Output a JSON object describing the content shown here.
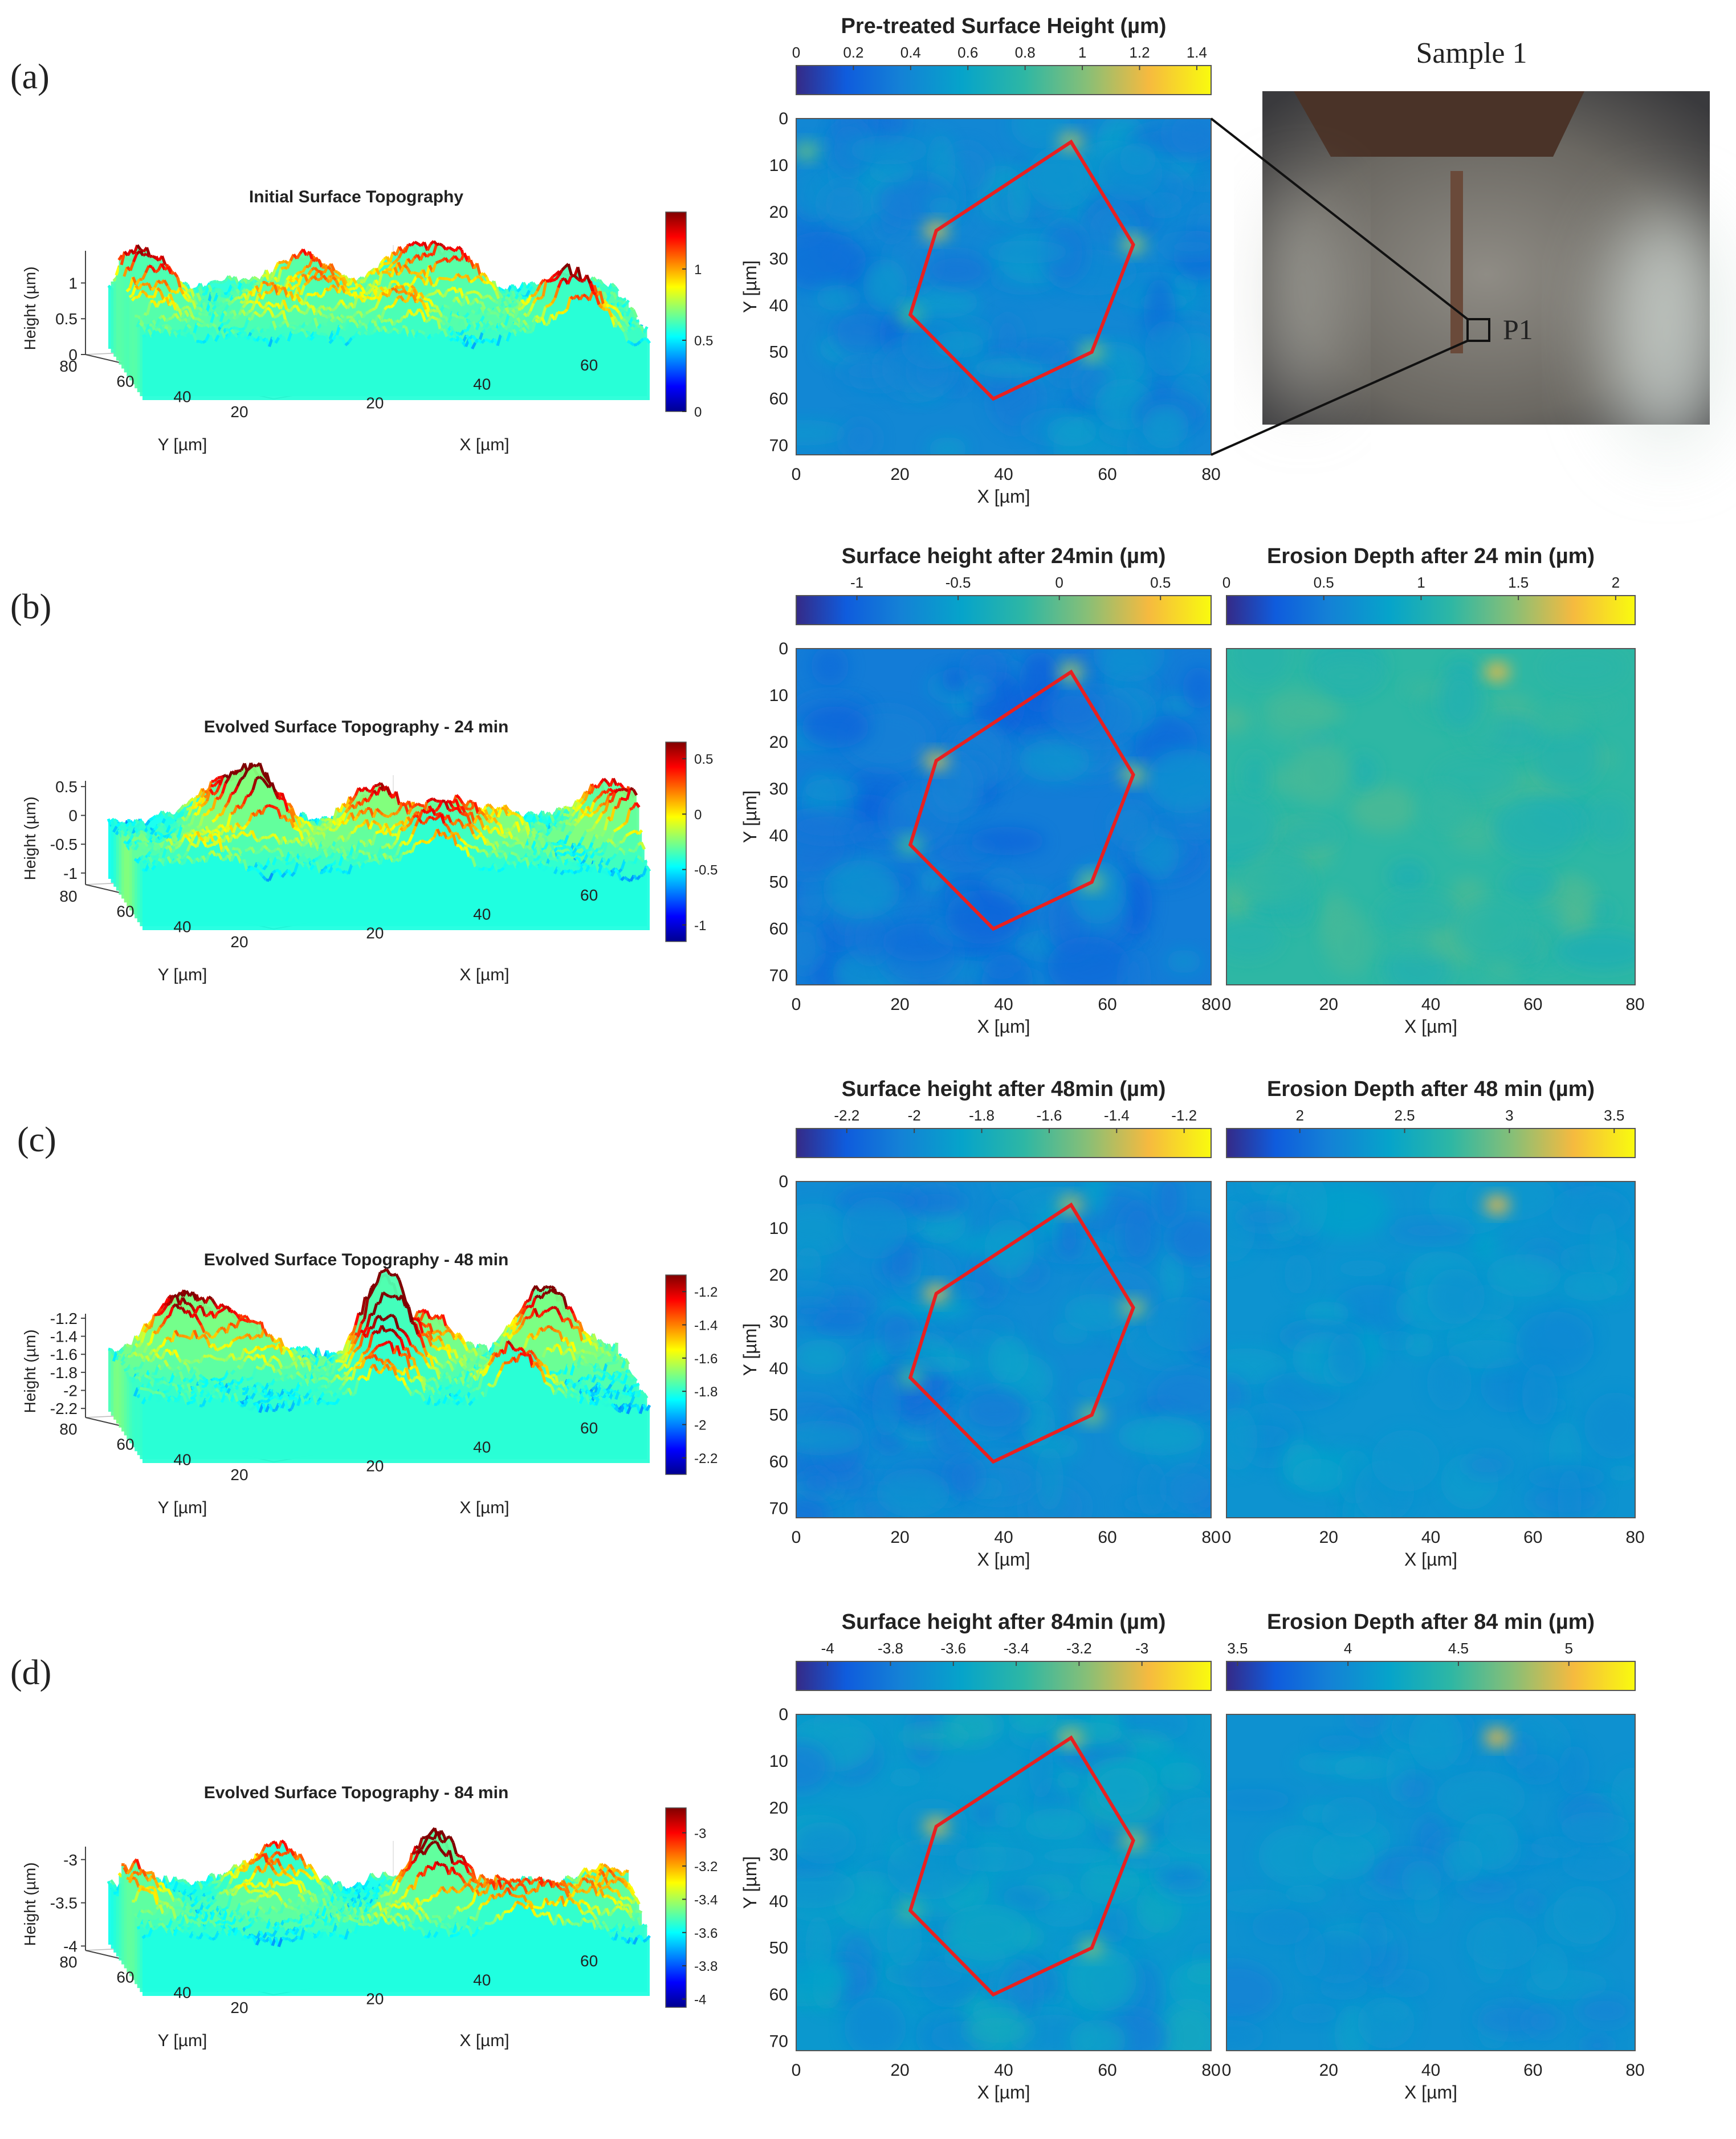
{
  "figure": {
    "panels": [
      {
        "label": "(a)",
        "topo3d": {
          "title": "Initial Surface Topography",
          "zticks": [
            "0",
            "0.5",
            "1"
          ],
          "zrange": [
            0,
            1.45
          ],
          "cbticks": [
            "0",
            "0.5",
            "1"
          ],
          "cbrange": [
            0,
            1.4
          ],
          "zlabel": "Height (µm)",
          "xlabel": "X [µm]",
          "ylabel": "Y [µm]",
          "xticks": [
            "20",
            "40",
            "60"
          ],
          "yticks": [
            "80",
            "60",
            "40",
            "20"
          ]
        },
        "map1": {
          "title": "Pre-treated Surface Height (µm)",
          "cbticks": [
            "0",
            "0.2",
            "0.4",
            "0.6",
            "0.8",
            "1",
            "1.2",
            "1.4"
          ],
          "cbrange": [
            0,
            1.45
          ],
          "baseline": 0.45
        },
        "photo": {
          "title": "Sample 1",
          "marker": "P1"
        }
      },
      {
        "label": "(b)",
        "topo3d": {
          "title": "Evolved Surface Topography - 24 min",
          "zticks": [
            "-1",
            "-0.5",
            "0",
            "0.5"
          ],
          "zrange": [
            -1.2,
            0.6
          ],
          "cbticks": [
            "-1",
            "-0.5",
            "0",
            "0.5"
          ],
          "cbrange": [
            -1.15,
            0.65
          ],
          "zlabel": "Height (µm)",
          "xlabel": "X [µm]",
          "ylabel": "Y [µm]",
          "xticks": [
            "20",
            "40",
            "60"
          ],
          "yticks": [
            "80",
            "60",
            "40",
            "20"
          ]
        },
        "map1": {
          "title": "Surface height after 24min (µm)",
          "cbticks": [
            "-1",
            "-0.5",
            "0",
            "0.5"
          ],
          "cbrange": [
            -1.3,
            0.75
          ],
          "baseline": -0.75
        },
        "map2": {
          "title": "Erosion Depth after 24 min (µm)",
          "cbticks": [
            "0",
            "0.5",
            "1",
            "1.5",
            "2"
          ],
          "cbrange": [
            0,
            2.1
          ],
          "baseline": 1.2
        }
      },
      {
        "label": "(c)",
        "topo3d": {
          "title": "Evolved Surface Topography - 48 min",
          "zticks": [
            "-2.2",
            "-2",
            "-1.8",
            "-1.6",
            "-1.4",
            "-1.2"
          ],
          "zrange": [
            -2.3,
            -1.15
          ],
          "cbticks": [
            "-2.2",
            "-2",
            "-1.8",
            "-1.6",
            "-1.4",
            "-1.2"
          ],
          "cbrange": [
            -2.3,
            -1.1
          ],
          "zlabel": "Height (µm)",
          "xlabel": "X [µm]",
          "ylabel": "Y [µm]",
          "xticks": [
            "20",
            "40",
            "60"
          ],
          "yticks": [
            "80",
            "60",
            "40",
            "20"
          ]
        },
        "map1": {
          "title": "Surface height after 48min (µm)",
          "cbticks": [
            "-2.2",
            "-2",
            "-1.8",
            "-1.6",
            "-1.4",
            "-1.2"
          ],
          "cbrange": [
            -2.35,
            -1.12
          ],
          "baseline": -1.95
        },
        "map2": {
          "title": "Erosion Depth after 48 min (µm)",
          "cbticks": [
            "2",
            "2.5",
            "3",
            "3.5"
          ],
          "cbrange": [
            1.65,
            3.6
          ],
          "baseline": 2.35
        }
      },
      {
        "label": "(d)",
        "topo3d": {
          "title": "Evolved Surface Topography - 84 min",
          "zticks": [
            "-4",
            "-3.5",
            "-3"
          ],
          "zrange": [
            -4.05,
            -2.85
          ],
          "cbticks": [
            "-4",
            "-3.8",
            "-3.6",
            "-3.4",
            "-3.2",
            "-3"
          ],
          "cbrange": [
            -4.05,
            -2.85
          ],
          "zlabel": "Height (µm)",
          "xlabel": "X [µm]",
          "ylabel": "Y [µm]",
          "xticks": [
            "20",
            "40",
            "60"
          ],
          "yticks": [
            "80",
            "60",
            "40",
            "20"
          ]
        },
        "map1": {
          "title": "Surface height after 84min (µm)",
          "cbticks": [
            "-4",
            "-3.8",
            "-3.6",
            "-3.4",
            "-3.2",
            "-3"
          ],
          "cbrange": [
            -4.1,
            -2.78
          ],
          "baseline": -3.6
        },
        "map2": {
          "title": "Erosion Depth after 84 min (µm)",
          "cbticks": [
            "3.5",
            "4",
            "4.5",
            "5"
          ],
          "cbrange": [
            3.45,
            5.3
          ],
          "baseline": 4.1
        }
      }
    ],
    "map_axes": {
      "xlabel": "X [µm]",
      "ylabel": "Y [µm]",
      "xticks": [
        "0",
        "20",
        "40",
        "60",
        "80"
      ],
      "yticks": [
        "0",
        "10",
        "20",
        "30",
        "40",
        "50",
        "60",
        "70"
      ],
      "xrange": [
        0,
        80
      ],
      "yrange": [
        0,
        72
      ]
    },
    "hexagon": {
      "vertices_um": [
        [
          53,
          5
        ],
        [
          65,
          27
        ],
        [
          57,
          50
        ],
        [
          38,
          60
        ],
        [
          22,
          42
        ],
        [
          27,
          24
        ]
      ],
      "color": "#e82020"
    },
    "colors": {
      "text": "#222222",
      "hexagon": "#e82020"
    }
  }
}
